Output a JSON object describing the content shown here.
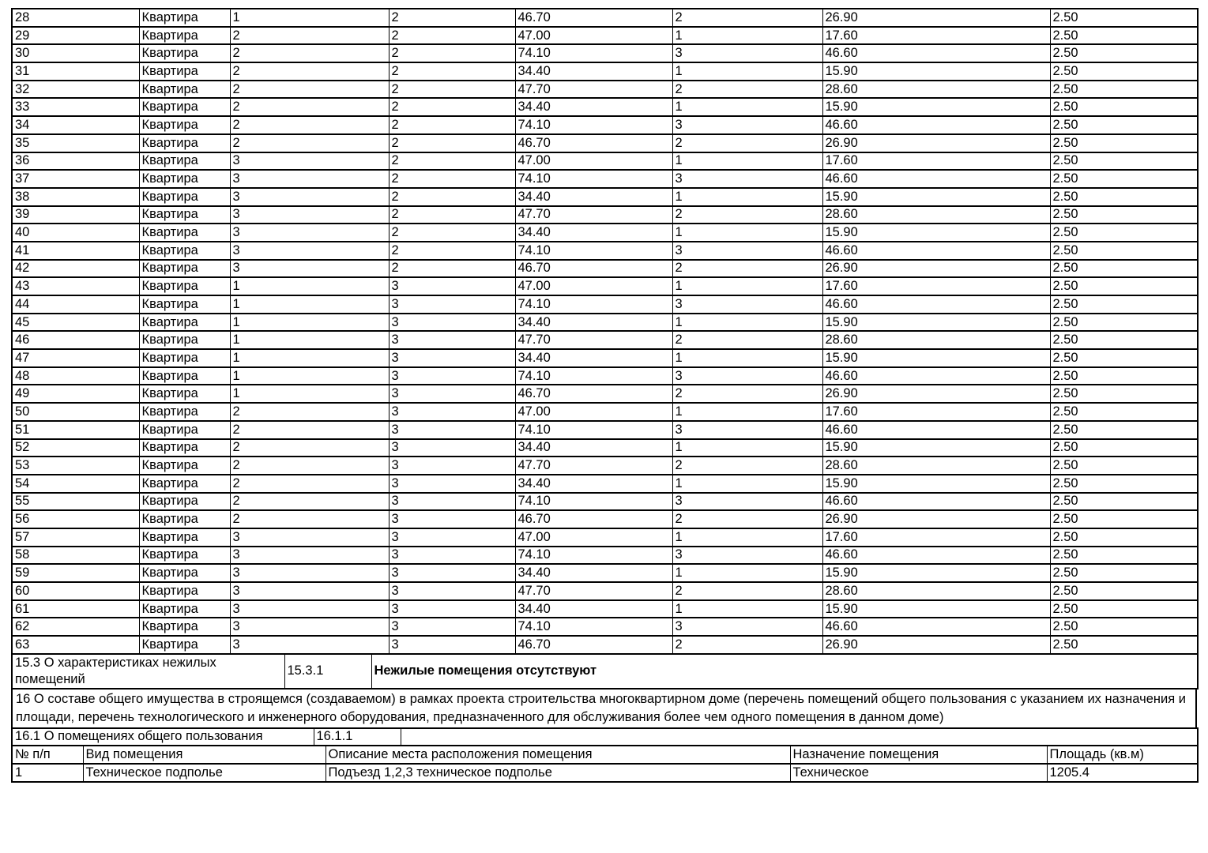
{
  "apartments_table": {
    "rows": [
      [
        "28",
        "Квартира",
        "1",
        "2",
        "46.70",
        "2",
        "26.90",
        "2.50"
      ],
      [
        "29",
        "Квартира",
        "2",
        "2",
        "47.00",
        "1",
        "17.60",
        "2.50"
      ],
      [
        "30",
        "Квартира",
        "2",
        "2",
        "74.10",
        "3",
        "46.60",
        "2.50"
      ],
      [
        "31",
        "Квартира",
        "2",
        "2",
        "34.40",
        "1",
        "15.90",
        "2.50"
      ],
      [
        "32",
        "Квартира",
        "2",
        "2",
        "47.70",
        "2",
        "28.60",
        "2.50"
      ],
      [
        "33",
        "Квартира",
        "2",
        "2",
        "34.40",
        "1",
        "15.90",
        "2.50"
      ],
      [
        "34",
        "Квартира",
        "2",
        "2",
        "74.10",
        "3",
        "46.60",
        "2.50"
      ],
      [
        "35",
        "Квартира",
        "2",
        "2",
        "46.70",
        "2",
        "26.90",
        "2.50"
      ],
      [
        "36",
        "Квартира",
        "3",
        "2",
        "47.00",
        "1",
        "17.60",
        "2.50"
      ],
      [
        "37",
        "Квартира",
        "3",
        "2",
        "74.10",
        "3",
        "46.60",
        "2.50"
      ],
      [
        "38",
        "Квартира",
        "3",
        "2",
        "34.40",
        "1",
        "15.90",
        "2.50"
      ],
      [
        "39",
        "Квартира",
        "3",
        "2",
        "47.70",
        "2",
        "28.60",
        "2.50"
      ],
      [
        "40",
        "Квартира",
        "3",
        "2",
        "34.40",
        "1",
        "15.90",
        "2.50"
      ],
      [
        "41",
        "Квартира",
        "3",
        "2",
        "74.10",
        "3",
        "46.60",
        "2.50"
      ],
      [
        "42",
        "Квартира",
        "3",
        "2",
        "46.70",
        "2",
        "26.90",
        "2.50"
      ],
      [
        "43",
        "Квартира",
        "1",
        "3",
        "47.00",
        "1",
        "17.60",
        "2.50"
      ],
      [
        "44",
        "Квартира",
        "1",
        "3",
        "74.10",
        "3",
        "46.60",
        "2.50"
      ],
      [
        "45",
        "Квартира",
        "1",
        "3",
        "34.40",
        "1",
        "15.90",
        "2.50"
      ],
      [
        "46",
        "Квартира",
        "1",
        "3",
        "47.70",
        "2",
        "28.60",
        "2.50"
      ],
      [
        "47",
        "Квартира",
        "1",
        "3",
        "34.40",
        "1",
        "15.90",
        "2.50"
      ],
      [
        "48",
        "Квартира",
        "1",
        "3",
        "74.10",
        "3",
        "46.60",
        "2.50"
      ],
      [
        "49",
        "Квартира",
        "1",
        "3",
        "46.70",
        "2",
        "26.90",
        "2.50"
      ],
      [
        "50",
        "Квартира",
        "2",
        "3",
        "47.00",
        "1",
        "17.60",
        "2.50"
      ],
      [
        "51",
        "Квартира",
        "2",
        "3",
        "74.10",
        "3",
        "46.60",
        "2.50"
      ],
      [
        "52",
        "Квартира",
        "2",
        "3",
        "34.40",
        "1",
        "15.90",
        "2.50"
      ],
      [
        "53",
        "Квартира",
        "2",
        "3",
        "47.70",
        "2",
        "28.60",
        "2.50"
      ],
      [
        "54",
        "Квартира",
        "2",
        "3",
        "34.40",
        "1",
        "15.90",
        "2.50"
      ],
      [
        "55",
        "Квартира",
        "2",
        "3",
        "74.10",
        "3",
        "46.60",
        "2.50"
      ],
      [
        "56",
        "Квартира",
        "2",
        "3",
        "46.70",
        "2",
        "26.90",
        "2.50"
      ],
      [
        "57",
        "Квартира",
        "3",
        "3",
        "47.00",
        "1",
        "17.60",
        "2.50"
      ],
      [
        "58",
        "Квартира",
        "3",
        "3",
        "74.10",
        "3",
        "46.60",
        "2.50"
      ],
      [
        "59",
        "Квартира",
        "3",
        "3",
        "34.40",
        "1",
        "15.90",
        "2.50"
      ],
      [
        "60",
        "Квартира",
        "3",
        "3",
        "47.70",
        "2",
        "28.60",
        "2.50"
      ],
      [
        "61",
        "Квартира",
        "3",
        "3",
        "34.40",
        "1",
        "15.90",
        "2.50"
      ],
      [
        "62",
        "Квартира",
        "3",
        "3",
        "74.10",
        "3",
        "46.60",
        "2.50"
      ],
      [
        "63",
        "Квартира",
        "3",
        "3",
        "46.70",
        "2",
        "26.90",
        "2.50"
      ]
    ]
  },
  "section_15_3": {
    "label": "15.3 О характеристиках нежилых помещений",
    "code": "15.3.1",
    "value": "Нежилые помещения отсутствуют"
  },
  "section_16": {
    "text": "16 О составе общего имущества в строящемся (создаваемом) в рамках проекта строительства многоквартирном доме (перечень помещений общего пользования с указанием их назначения и площади, перечень технологического и инженерного оборудования, предназначенного для обслуживания более чем одного помещения в данном доме)"
  },
  "section_16_1": {
    "label": "16.1 О помещениях общего пользования",
    "code": "16.1.1",
    "value": ""
  },
  "common_areas_table": {
    "headers": [
      "№ п/п",
      "Вид помещения",
      "Описание места расположения помещения",
      "Назначение помещения",
      "Площадь (кв.м)"
    ],
    "rows": [
      [
        "1",
        "Техническое подполье",
        "Подъезд 1,2,3 техническое подполье",
        "Техническое",
        "1205.4"
      ]
    ]
  }
}
